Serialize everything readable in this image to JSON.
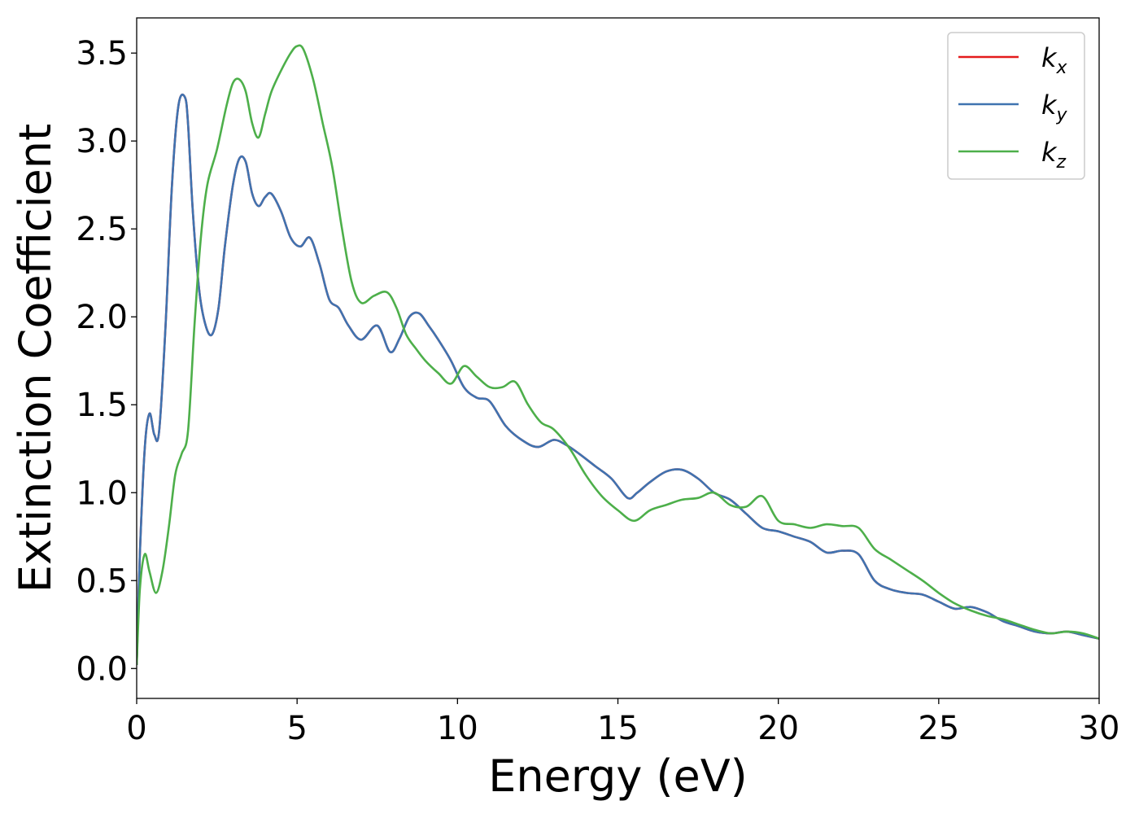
{
  "chart_data": {
    "type": "line",
    "title": "",
    "xlabel": "Energy (eV)",
    "ylabel": "Extinction Coefficient",
    "xlim": [
      0,
      30
    ],
    "ylim": [
      -0.17,
      3.7
    ],
    "xticks": [
      0,
      5,
      10,
      15,
      20,
      25,
      30
    ],
    "xtick_labels": [
      "0",
      "5",
      "10",
      "15",
      "20",
      "25",
      "30"
    ],
    "yticks": [
      0.0,
      0.5,
      1.0,
      1.5,
      2.0,
      2.5,
      3.0,
      3.5
    ],
    "ytick_labels": [
      "0.0",
      "0.5",
      "1.0",
      "1.5",
      "2.0",
      "2.5",
      "3.0",
      "3.5"
    ],
    "grid": false,
    "legend_position": "top-right",
    "series": [
      {
        "name": "k",
        "subscript": "x",
        "color": "#e41a1c",
        "x": [
          0,
          0.1,
          0.25,
          0.4,
          0.55,
          0.7,
          0.9,
          1.1,
          1.3,
          1.5,
          1.6,
          1.75,
          1.95,
          2.15,
          2.35,
          2.55,
          2.75,
          3.0,
          3.2,
          3.4,
          3.6,
          3.8,
          4.0,
          4.2,
          4.5,
          4.8,
          5.1,
          5.4,
          5.7,
          6.0,
          6.3,
          6.6,
          7.0,
          7.5,
          7.9,
          8.2,
          8.5,
          8.8,
          9.1,
          9.4,
          9.8,
          10.2,
          10.6,
          11.0,
          11.5,
          12.0,
          12.5,
          13.0,
          13.4,
          13.8,
          14.3,
          14.8,
          15.3,
          15.6,
          16.0,
          16.5,
          17.0,
          17.5,
          18.0,
          18.5,
          19.0,
          19.5,
          20.0,
          20.5,
          21.0,
          21.5,
          22.0,
          22.5,
          23.0,
          23.5,
          24.0,
          24.5,
          25.0,
          25.5,
          26.0,
          26.5,
          27.0,
          27.5,
          28.0,
          28.5,
          29.0,
          29.5,
          30.0
        ],
        "y": [
          0.02,
          0.65,
          1.25,
          1.45,
          1.33,
          1.35,
          1.95,
          2.75,
          3.2,
          3.25,
          3.1,
          2.6,
          2.15,
          1.95,
          1.9,
          2.05,
          2.4,
          2.75,
          2.9,
          2.88,
          2.7,
          2.63,
          2.68,
          2.7,
          2.6,
          2.45,
          2.4,
          2.45,
          2.3,
          2.1,
          2.05,
          1.95,
          1.87,
          1.95,
          1.8,
          1.88,
          2.0,
          2.02,
          1.95,
          1.87,
          1.75,
          1.6,
          1.54,
          1.52,
          1.38,
          1.3,
          1.26,
          1.3,
          1.27,
          1.22,
          1.15,
          1.08,
          0.97,
          1.0,
          1.06,
          1.12,
          1.13,
          1.08,
          1.0,
          0.96,
          0.88,
          0.8,
          0.78,
          0.75,
          0.72,
          0.66,
          0.67,
          0.65,
          0.5,
          0.45,
          0.43,
          0.42,
          0.38,
          0.34,
          0.35,
          0.32,
          0.27,
          0.24,
          0.21,
          0.2,
          0.21,
          0.19,
          0.17
        ]
      },
      {
        "name": "k",
        "subscript": "y",
        "color": "#3f73b0",
        "x": [
          0,
          0.1,
          0.25,
          0.4,
          0.55,
          0.7,
          0.9,
          1.1,
          1.3,
          1.5,
          1.6,
          1.75,
          1.95,
          2.15,
          2.35,
          2.55,
          2.75,
          3.0,
          3.2,
          3.4,
          3.6,
          3.8,
          4.0,
          4.2,
          4.5,
          4.8,
          5.1,
          5.4,
          5.7,
          6.0,
          6.3,
          6.6,
          7.0,
          7.5,
          7.9,
          8.2,
          8.5,
          8.8,
          9.1,
          9.4,
          9.8,
          10.2,
          10.6,
          11.0,
          11.5,
          12.0,
          12.5,
          13.0,
          13.4,
          13.8,
          14.3,
          14.8,
          15.3,
          15.6,
          16.0,
          16.5,
          17.0,
          17.5,
          18.0,
          18.5,
          19.0,
          19.5,
          20.0,
          20.5,
          21.0,
          21.5,
          22.0,
          22.5,
          23.0,
          23.5,
          24.0,
          24.5,
          25.0,
          25.5,
          26.0,
          26.5,
          27.0,
          27.5,
          28.0,
          28.5,
          29.0,
          29.5,
          30.0
        ],
        "y": [
          0.02,
          0.65,
          1.25,
          1.45,
          1.33,
          1.35,
          1.95,
          2.75,
          3.2,
          3.25,
          3.1,
          2.6,
          2.15,
          1.95,
          1.9,
          2.05,
          2.4,
          2.75,
          2.9,
          2.88,
          2.7,
          2.63,
          2.68,
          2.7,
          2.6,
          2.45,
          2.4,
          2.45,
          2.3,
          2.1,
          2.05,
          1.95,
          1.87,
          1.95,
          1.8,
          1.88,
          2.0,
          2.02,
          1.95,
          1.87,
          1.75,
          1.6,
          1.54,
          1.52,
          1.38,
          1.3,
          1.26,
          1.3,
          1.27,
          1.22,
          1.15,
          1.08,
          0.97,
          1.0,
          1.06,
          1.12,
          1.13,
          1.08,
          1.0,
          0.96,
          0.88,
          0.8,
          0.78,
          0.75,
          0.72,
          0.66,
          0.67,
          0.65,
          0.5,
          0.45,
          0.43,
          0.42,
          0.38,
          0.34,
          0.35,
          0.32,
          0.27,
          0.24,
          0.21,
          0.2,
          0.21,
          0.19,
          0.17
        ]
      },
      {
        "name": "k",
        "subscript": "z",
        "color": "#4daf4a",
        "x": [
          0,
          0.1,
          0.25,
          0.4,
          0.6,
          0.8,
          1.0,
          1.2,
          1.4,
          1.6,
          1.8,
          2.0,
          2.2,
          2.5,
          2.8,
          3.0,
          3.2,
          3.4,
          3.6,
          3.8,
          4.0,
          4.2,
          4.5,
          4.8,
          5.0,
          5.2,
          5.5,
          5.8,
          6.1,
          6.4,
          6.7,
          7.0,
          7.4,
          7.8,
          8.1,
          8.4,
          8.7,
          9.0,
          9.4,
          9.8,
          10.2,
          10.6,
          11.0,
          11.4,
          11.8,
          12.2,
          12.6,
          13.0,
          13.5,
          14.0,
          14.5,
          15.0,
          15.5,
          16.0,
          16.5,
          17.0,
          17.5,
          18.0,
          18.5,
          19.0,
          19.5,
          20.0,
          20.5,
          21.0,
          21.5,
          22.0,
          22.5,
          23.0,
          23.5,
          24.0,
          24.5,
          25.0,
          25.5,
          26.0,
          26.5,
          27.0,
          27.5,
          28.0,
          28.5,
          29.0,
          29.5,
          30.0
        ],
        "y": [
          0.02,
          0.45,
          0.65,
          0.55,
          0.43,
          0.55,
          0.8,
          1.1,
          1.22,
          1.35,
          1.95,
          2.45,
          2.75,
          2.95,
          3.2,
          3.33,
          3.35,
          3.28,
          3.1,
          3.02,
          3.15,
          3.28,
          3.4,
          3.5,
          3.54,
          3.52,
          3.35,
          3.1,
          2.85,
          2.5,
          2.2,
          2.08,
          2.12,
          2.14,
          2.05,
          1.9,
          1.82,
          1.75,
          1.68,
          1.62,
          1.72,
          1.66,
          1.6,
          1.6,
          1.63,
          1.5,
          1.4,
          1.36,
          1.25,
          1.1,
          0.98,
          0.9,
          0.84,
          0.9,
          0.93,
          0.96,
          0.97,
          1.0,
          0.93,
          0.92,
          0.98,
          0.84,
          0.82,
          0.8,
          0.82,
          0.81,
          0.8,
          0.68,
          0.62,
          0.56,
          0.5,
          0.43,
          0.37,
          0.33,
          0.3,
          0.28,
          0.25,
          0.22,
          0.2,
          0.21,
          0.2,
          0.17
        ]
      }
    ]
  }
}
